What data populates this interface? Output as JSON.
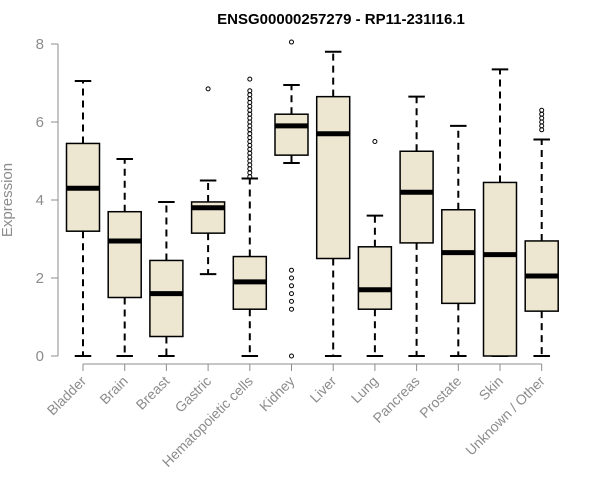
{
  "chart_data": {
    "type": "box",
    "title": "ENSG00000257279 - RP11-231I16.1",
    "ylabel": "Expression",
    "ylim": [
      0,
      8
    ],
    "yticks": [
      0,
      2,
      4,
      6,
      8
    ],
    "grid": false,
    "legend": "none",
    "colors": {
      "box_fill": "#ede6d0",
      "stroke": "#000000",
      "axis": "#8c8c8c"
    },
    "categories": [
      "Bladder",
      "Brain",
      "Breast",
      "Gastric",
      "Hematopoietic cells",
      "Kidney",
      "Liver",
      "Lung",
      "Pancreas",
      "Prostate",
      "Skin",
      "Unknown / Other"
    ],
    "boxes": [
      {
        "label": "Bladder",
        "min": 0.0,
        "q1": 3.2,
        "median": 4.3,
        "q3": 5.45,
        "max": 7.05,
        "outliers": []
      },
      {
        "label": "Brain",
        "min": 0.0,
        "q1": 1.5,
        "median": 2.95,
        "q3": 3.7,
        "max": 5.05,
        "outliers": []
      },
      {
        "label": "Breast",
        "min": 0.0,
        "q1": 0.5,
        "median": 1.6,
        "q3": 2.45,
        "max": 3.95,
        "outliers": []
      },
      {
        "label": "Gastric",
        "min": 2.1,
        "q1": 3.15,
        "median": 3.8,
        "q3": 3.95,
        "max": 4.5,
        "outliers": [
          6.85
        ]
      },
      {
        "label": "Hematopoietic cells",
        "min": 0.0,
        "q1": 1.2,
        "median": 1.9,
        "q3": 2.55,
        "max": 4.55,
        "outliers": [
          4.6,
          4.7,
          4.8,
          4.9,
          5.0,
          5.1,
          5.2,
          5.3,
          5.4,
          5.5,
          5.6,
          5.7,
          5.8,
          5.9,
          6.0,
          6.1,
          6.2,
          6.3,
          6.4,
          6.5,
          6.6,
          6.7,
          6.8,
          7.1
        ]
      },
      {
        "label": "Kidney",
        "min": 4.95,
        "q1": 5.15,
        "median": 5.9,
        "q3": 6.2,
        "max": 6.95,
        "outliers": [
          8.05,
          2.2,
          2.0,
          1.8,
          1.6,
          1.4,
          1.2,
          0.0
        ]
      },
      {
        "label": "Liver",
        "min": 0.0,
        "q1": 2.5,
        "median": 5.7,
        "q3": 6.65,
        "max": 7.8,
        "outliers": []
      },
      {
        "label": "Lung",
        "min": 0.0,
        "q1": 1.2,
        "median": 1.7,
        "q3": 2.8,
        "max": 3.6,
        "outliers": [
          5.5
        ]
      },
      {
        "label": "Pancreas",
        "min": 0.0,
        "q1": 2.9,
        "median": 4.2,
        "q3": 5.25,
        "max": 6.65,
        "outliers": []
      },
      {
        "label": "Prostate",
        "min": 0.0,
        "q1": 1.35,
        "median": 2.65,
        "q3": 3.75,
        "max": 5.9,
        "outliers": []
      },
      {
        "label": "Skin",
        "min": 0.0,
        "q1": 0.0,
        "median": 2.6,
        "q3": 4.45,
        "max": 7.35,
        "outliers": []
      },
      {
        "label": "Unknown / Other",
        "min": 0.0,
        "q1": 1.15,
        "median": 2.05,
        "q3": 2.95,
        "max": 5.55,
        "outliers": [
          5.8,
          5.9,
          6.0,
          6.1,
          6.2,
          6.3
        ]
      }
    ]
  }
}
